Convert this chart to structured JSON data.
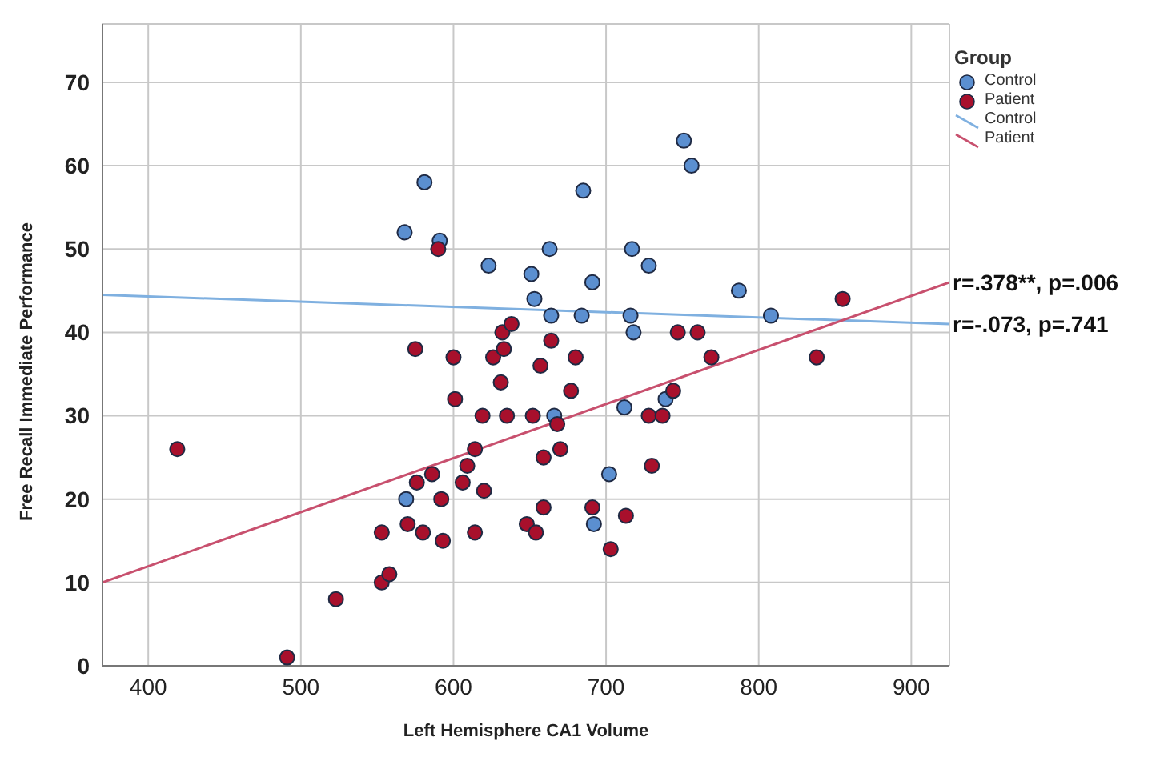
{
  "chart_data": {
    "type": "scatter",
    "xlabel": "Left Hemisphere CA1 Volume",
    "ylabel": "Free Recall Immediate Performance",
    "legend_title": "Group",
    "xlim": [
      370,
      925
    ],
    "ylim": [
      0,
      77
    ],
    "xticks": [
      400,
      500,
      600,
      700,
      800,
      900
    ],
    "yticks": [
      0,
      10,
      20,
      30,
      40,
      50,
      60,
      70
    ],
    "grid": true,
    "legend": "top right",
    "marker": "circle",
    "line_style": "solid",
    "series": [
      {
        "name": "Control",
        "color": "#5b8fd0",
        "x": [
          581,
          568,
          591,
          623,
          751,
          756,
          685,
          663,
          717,
          651,
          728,
          691,
          653,
          787,
          664,
          684,
          716,
          808,
          718,
          712,
          739,
          666,
          702,
          692,
          569
        ],
        "values": [
          58,
          52,
          51,
          48,
          63,
          60,
          57,
          50,
          50,
          47,
          48,
          46,
          44,
          45,
          42,
          42,
          42,
          42,
          40,
          31,
          32,
          30,
          23,
          17,
          20
        ]
      },
      {
        "name": "Patient",
        "color": "#a8102c",
        "x": [
          590,
          575,
          600,
          626,
          632,
          638,
          664,
          633,
          657,
          680,
          747,
          760,
          769,
          838,
          855,
          631,
          677,
          619,
          635,
          652,
          668,
          744,
          728,
          737,
          670,
          659,
          730,
          659,
          691,
          648,
          654,
          713,
          703,
          620,
          419,
          576,
          586,
          592,
          553,
          570,
          580,
          593,
          553,
          558,
          523,
          491,
          614,
          609,
          606,
          614,
          601
        ],
        "values": [
          50,
          38,
          37,
          37,
          40,
          41,
          39,
          38,
          36,
          37,
          40,
          40,
          37,
          37,
          44,
          34,
          33,
          30,
          30,
          30,
          29,
          33,
          30,
          30,
          26,
          25,
          24,
          19,
          19,
          17,
          16,
          18,
          14,
          21,
          26,
          22,
          23,
          20,
          16,
          17,
          16,
          15,
          10,
          11,
          8,
          1,
          26,
          24,
          22,
          16,
          32
        ]
      },
      {
        "name": "Control",
        "type": "line",
        "marker": "none",
        "color": "#7fb0e0",
        "x": [
          370,
          925
        ],
        "values": [
          44.5,
          41
        ]
      },
      {
        "name": "Patient",
        "type": "line",
        "marker": "none",
        "color": "#c8506e",
        "x": [
          370,
          925
        ],
        "values": [
          10,
          46
        ]
      }
    ],
    "annotations": [
      {
        "text": "r=.378**, p=.006",
        "x": 925,
        "y": 46
      },
      {
        "text": "r=-.073, p=.741",
        "x": 925,
        "y": 41
      }
    ]
  }
}
